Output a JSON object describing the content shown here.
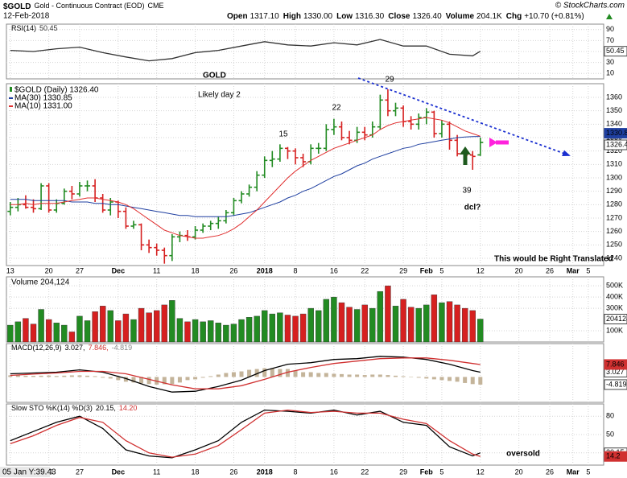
{
  "chart_data": {
    "type": "stock",
    "symbol": "$GOLD",
    "description": "Gold - Continuous Contract (EOD)",
    "exchange": "CME",
    "date": "12-Feb-2018",
    "source": "© StockCharts.com",
    "quote": [
      [
        "Open",
        "1317.10"
      ],
      [
        "High",
        "1330.00"
      ],
      [
        "Low",
        "1316.30"
      ],
      [
        "Close",
        "1326.40"
      ],
      [
        "Volume",
        "204.1K"
      ],
      [
        "Chg",
        "+10.70 (+0.81%)"
      ]
    ],
    "cursor_note": "05 Jan Y:39.43",
    "xlim": [
      -0.5,
      77
    ],
    "xticks": [
      {
        "value": 0,
        "label": "13"
      },
      {
        "value": 5,
        "label": "20"
      },
      {
        "value": 9,
        "label": "27"
      },
      {
        "value": 14,
        "label": "Dec"
      },
      {
        "value": 19,
        "label": "11"
      },
      {
        "value": 24,
        "label": "18"
      },
      {
        "value": 29,
        "label": "26"
      },
      {
        "value": 33,
        "label": "2018"
      },
      {
        "value": 37,
        "label": "8"
      },
      {
        "value": 42,
        "label": "16"
      },
      {
        "value": 46,
        "label": "22"
      },
      {
        "value": 51,
        "label": "29"
      },
      {
        "value": 54,
        "label": "Feb"
      },
      {
        "value": 56,
        "label": "5"
      },
      {
        "value": 61,
        "label": "12"
      },
      {
        "value": 66,
        "label": "20"
      },
      {
        "value": 70,
        "label": "26"
      },
      {
        "value": 73,
        "label": "Mar"
      },
      {
        "value": 75,
        "label": "5"
      }
    ],
    "grid": true,
    "panels": [
      {
        "type": "line",
        "title": "RSI(14)",
        "ylim": [
          0,
          100
        ],
        "yticks": [
          10,
          30,
          50,
          70,
          90
        ],
        "x": [
          0,
          3,
          6,
          9,
          12,
          15,
          18,
          21,
          24,
          27,
          30,
          33,
          36,
          39,
          42,
          45,
          48,
          51,
          54,
          57,
          60,
          61
        ],
        "series": [
          {
            "name": "50.45",
            "color": "#333333",
            "values": [
              52,
              50,
              55,
              58,
              48,
              40,
              33,
              37,
              48,
              52,
              60,
              68,
              62,
              60,
              66,
              62,
              72,
              60,
              60,
              45,
              42,
              50.45
            ]
          }
        ]
      },
      {
        "type": "ohlc",
        "name": "$GOLD (Daily) 1326.40",
        "color_up": "#228b22",
        "color_down": "#d62020",
        "ylim": [
          1234.6,
          1370.2
        ],
        "yticks": [
          1240,
          1250,
          1260,
          1270,
          1280,
          1290,
          1300,
          1310,
          1320,
          1330,
          1340,
          1350,
          1360
        ],
        "open": [
          1275,
          1278,
          1280,
          1278,
          1277,
          1294,
          1276,
          1281,
          1290,
          1288,
          1294,
          1294,
          1285,
          1276,
          1282,
          1275,
          1264,
          1265,
          1250,
          1248,
          1246,
          1242,
          1256,
          1257,
          1256,
          1261,
          1264,
          1266,
          1268,
          1274,
          1283,
          1288,
          1293,
          1302,
          1313,
          1314,
          1322,
          1320,
          1315,
          1312,
          1322,
          1322,
          1336,
          1338,
          1330,
          1328,
          1334,
          1332,
          1338,
          1358,
          1350,
          1352,
          1342,
          1340,
          1345,
          1349,
          1333,
          1340,
          1328,
          1318,
          1317,
          1317.1
        ],
        "high": [
          1282,
          1285,
          1287,
          1284,
          1296,
          1296,
          1284,
          1292,
          1294,
          1297,
          1298,
          1299,
          1288,
          1285,
          1283,
          1278,
          1268,
          1266,
          1254,
          1251,
          1248,
          1258,
          1260,
          1261,
          1264,
          1266,
          1268,
          1271,
          1276,
          1285,
          1290,
          1295,
          1305,
          1316,
          1320,
          1325,
          1323,
          1322,
          1318,
          1325,
          1326,
          1340,
          1344,
          1342,
          1335,
          1338,
          1338,
          1342,
          1362,
          1366,
          1356,
          1354,
          1346,
          1348,
          1352,
          1350,
          1343,
          1342,
          1332,
          1322,
          1320,
          1330
        ],
        "low": [
          1272,
          1275,
          1277,
          1274,
          1276,
          1274,
          1274,
          1280,
          1284,
          1286,
          1290,
          1282,
          1274,
          1272,
          1270,
          1262,
          1262,
          1246,
          1244,
          1242,
          1236,
          1238,
          1252,
          1253,
          1254,
          1259,
          1261,
          1262,
          1266,
          1272,
          1281,
          1286,
          1290,
          1300,
          1308,
          1312,
          1314,
          1310,
          1308,
          1310,
          1318,
          1320,
          1332,
          1328,
          1325,
          1326,
          1328,
          1330,
          1336,
          1346,
          1346,
          1338,
          1336,
          1336,
          1340,
          1330,
          1330,
          1321,
          1316,
          1310,
          1306,
          1316.3
        ],
        "close": [
          1278,
          1280,
          1278,
          1277,
          1294,
          1276,
          1281,
          1290,
          1288,
          1294,
          1294,
          1285,
          1276,
          1282,
          1275,
          1264,
          1265,
          1250,
          1248,
          1246,
          1242,
          1256,
          1257,
          1256,
          1261,
          1264,
          1266,
          1268,
          1274,
          1283,
          1288,
          1293,
          1302,
          1313,
          1314,
          1322,
          1320,
          1315,
          1312,
          1322,
          1322,
          1336,
          1338,
          1330,
          1328,
          1334,
          1332,
          1338,
          1358,
          1350,
          1352,
          1342,
          1340,
          1345,
          1349,
          1333,
          1340,
          1328,
          1318,
          1317,
          1316,
          1326.4
        ],
        "series": [
          {
            "name": "MA(30) 1330.85",
            "color": "#1f3fa0",
            "values": [
              1284,
              1284,
              1284,
              1283,
              1283,
              1283,
              1283,
              1283,
              1282,
              1282,
              1282,
              1281,
              1281,
              1280,
              1280,
              1279,
              1278,
              1277,
              1276,
              1275,
              1274,
              1273,
              1272,
              1272,
              1271,
              1271,
              1271,
              1271,
              1271,
              1272,
              1273,
              1274,
              1276,
              1278,
              1280,
              1282,
              1285,
              1287,
              1290,
              1292,
              1295,
              1298,
              1301,
              1303,
              1306,
              1309,
              1311,
              1314,
              1316,
              1318,
              1320,
              1322,
              1323,
              1325,
              1326,
              1327,
              1328,
              1329,
              1330,
              1330.5,
              1330.7,
              1330.85
            ]
          },
          {
            "name": "MA(10) 1331.00",
            "color": "#e03030",
            "values": [
              1280,
              1280,
              1281,
              1280,
              1281,
              1281,
              1281,
              1282,
              1283,
              1284,
              1285,
              1285,
              1284,
              1283,
              1282,
              1280,
              1277,
              1273,
              1269,
              1265,
              1261,
              1259,
              1257,
              1256,
              1255,
              1255,
              1256,
              1257,
              1259,
              1262,
              1266,
              1271,
              1276,
              1282,
              1288,
              1294,
              1300,
              1305,
              1309,
              1313,
              1316,
              1319,
              1322,
              1324,
              1326,
              1328,
              1330,
              1332,
              1336,
              1339,
              1341,
              1342,
              1343,
              1344,
              1345,
              1344,
              1343,
              1341,
              1338,
              1335,
              1333,
              1331
            ]
          }
        ],
        "annotations": [
          "GOLD",
          "Likely day 2",
          "15",
          "22",
          "29",
          "39",
          "dcl?",
          "This would be Right Translated"
        ]
      },
      {
        "type": "bar",
        "title": "Volume 204,124",
        "ylim": [
          0,
          580000
        ],
        "yticks": [
          {
            "value": 100000,
            "label": "100K"
          },
          {
            "value": 300000,
            "label": "300K"
          },
          {
            "value": 400000,
            "label": "400K"
          },
          {
            "value": 500000,
            "label": "500K"
          }
        ],
        "values": [
          150000,
          180000,
          210000,
          160000,
          290000,
          200000,
          170000,
          150000,
          90000,
          230000,
          190000,
          270000,
          320000,
          280000,
          190000,
          250000,
          200000,
          300000,
          260000,
          280000,
          330000,
          370000,
          210000,
          180000,
          200000,
          180000,
          190000,
          170000,
          150000,
          160000,
          200000,
          220000,
          230000,
          280000,
          250000,
          260000,
          240000,
          230000,
          250000,
          300000,
          280000,
          380000,
          400000,
          350000,
          310000,
          290000,
          330000,
          300000,
          450000,
          500000,
          320000,
          380000,
          310000,
          300000,
          330000,
          420000,
          350000,
          360000,
          330000,
          300000,
          280000,
          204124
        ]
      },
      {
        "type": "macd",
        "title": "MACD(12,26,9)",
        "ylim": [
          -16,
          21
        ],
        "x": [
          0,
          3,
          6,
          9,
          12,
          15,
          18,
          21,
          24,
          27,
          30,
          33,
          36,
          39,
          42,
          45,
          48,
          51,
          54,
          57,
          60,
          61
        ],
        "series": [
          {
            "name": "3.027,",
            "color": "#000000",
            "values": [
              2,
              2.5,
              3,
              4.5,
              3,
              -1,
              -6,
              -9.5,
              -9,
              -6,
              -2,
              4,
              8,
              9,
              11,
              11.5,
              13,
              12.5,
              11,
              8,
              4,
              3.027
            ]
          },
          {
            "name": "7.846,",
            "color": "#d03030",
            "values": [
              1,
              1.8,
              2.5,
              3.5,
              3.5,
              2,
              -1.5,
              -5,
              -7.5,
              -7.5,
              -5.5,
              -1.5,
              3,
              6,
              8.5,
              10,
              11.5,
              12,
              12,
              10.5,
              8.5,
              7.846
            ]
          }
        ],
        "histogram": {
          "name": "-4.819",
          "color": "#c4b49a",
          "values": [
            1,
            1,
            0.8,
            0.7,
            0.8,
            0.9,
            0.6,
            0.8,
            1,
            1,
            0.8,
            0.5,
            -0.5,
            -1,
            -2,
            -3,
            -3.5,
            -4,
            -4.5,
            -4.8,
            -4.6,
            -4.5,
            -3.5,
            -2,
            -1.5,
            -0.5,
            0.5,
            1.5,
            2.5,
            3,
            3.5,
            4.5,
            5,
            5.5,
            5.5,
            5,
            5,
            4,
            3,
            3,
            2.5,
            2.5,
            2,
            1.8,
            1.5,
            1.5,
            1.2,
            1.5,
            1.5,
            1.2,
            0.8,
            0.5,
            0,
            -0.5,
            -1,
            -1.5,
            -2,
            -2.5,
            -3,
            -3.8,
            -4.5,
            -4.819
          ]
        }
      },
      {
        "type": "line",
        "title": "Slow STO %K(14) %D(3)",
        "ylim": [
          0,
          100
        ],
        "yticks": [
          20,
          50,
          80
        ],
        "x": [
          0,
          3,
          6,
          9,
          12,
          15,
          18,
          21,
          24,
          27,
          30,
          33,
          36,
          39,
          42,
          45,
          48,
          51,
          54,
          57,
          60,
          61
        ],
        "series": [
          {
            "name": "20.15,",
            "color": "#000000",
            "values": [
              40,
              55,
              70,
              80,
              60,
              25,
              15,
              12,
              25,
              40,
              70,
              90,
              88,
              85,
              90,
              82,
              88,
              70,
              65,
              30,
              15,
              20.15
            ]
          },
          {
            "name": "14.20",
            "color": "#d03030",
            "values": [
              35,
              48,
              65,
              78,
              70,
              40,
              20,
              13,
              18,
              32,
              58,
              85,
              90,
              86,
              88,
              85,
              85,
              75,
              68,
              40,
              18,
              14.2
            ]
          }
        ],
        "annotations": [
          "oversold"
        ]
      }
    ]
  }
}
